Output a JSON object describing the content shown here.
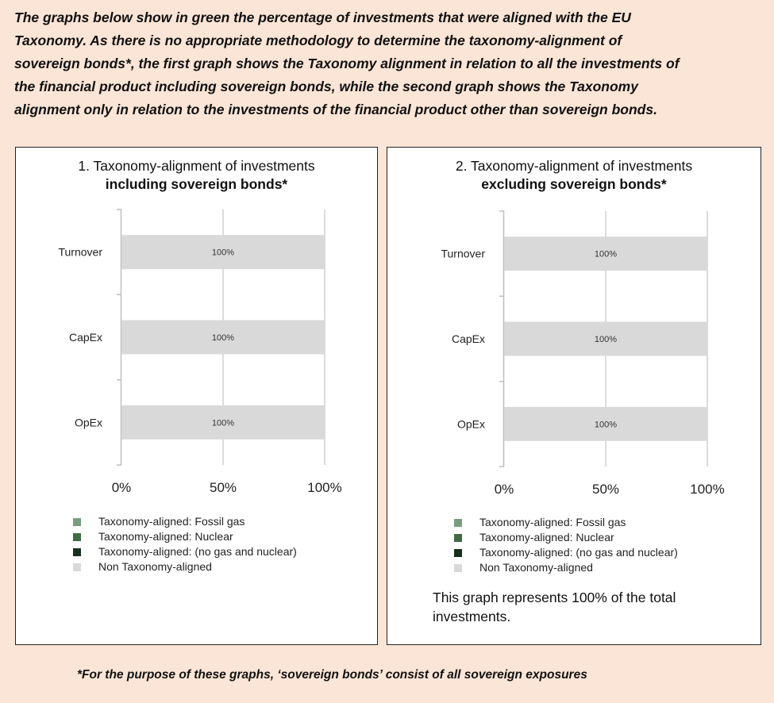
{
  "intro": {
    "lines": [
      "The graphs below show in green the percentage of investments that were aligned with the EU",
      "Taxonomy. As there is no appropriate methodology to determine the taxonomy-alignment of",
      "sovereign bonds*, the first graph shows the Taxonomy alignment in relation to all the investments of",
      "the financial product including sovereign bonds, while the second graph shows the Taxonomy",
      "alignment only in relation to the investments of the financial product other than sovereign bonds."
    ]
  },
  "legend": {
    "items": [
      {
        "label": "Taxonomy-aligned: Fossil gas",
        "color": "#7a9c80"
      },
      {
        "label": "Taxonomy-aligned: Nuclear",
        "color": "#3f6b46"
      },
      {
        "label": "Taxonomy-aligned: (no gas and nuclear)",
        "color": "#17301b"
      },
      {
        "label": "Non Taxonomy-aligned",
        "color": "#d9d9d9"
      }
    ]
  },
  "note": "This graph represents 100% of the total investments.",
  "footnote": "*For the purpose of these graphs, ‘sovereign bonds’ consist of  all sovereign exposures",
  "chart_data": [
    {
      "type": "bar",
      "orientation": "horizontal",
      "stacked": true,
      "title": "1. Taxonomy-alignment of investments",
      "subtitle": "including sovereign bonds*",
      "categories": [
        "Turnover",
        "CapEx",
        "OpEx"
      ],
      "series": [
        {
          "name": "Taxonomy-aligned: Fossil gas",
          "values": [
            0,
            0,
            0
          ]
        },
        {
          "name": "Taxonomy-aligned: Nuclear",
          "values": [
            0,
            0,
            0
          ]
        },
        {
          "name": "Taxonomy-aligned: (no gas and nuclear)",
          "values": [
            0,
            0,
            0
          ]
        },
        {
          "name": "Non Taxonomy-aligned",
          "values": [
            100,
            100,
            100
          ]
        }
      ],
      "data_labels": [
        "100%",
        "100%",
        "100%"
      ],
      "xticks": [
        "0%",
        "50%",
        "100%"
      ],
      "xlim": [
        0,
        100
      ],
      "grid": true,
      "legend_position": "bottom"
    },
    {
      "type": "bar",
      "orientation": "horizontal",
      "stacked": true,
      "title": "2. Taxonomy-alignment of investments",
      "subtitle": "excluding sovereign bonds*",
      "categories": [
        "Turnover",
        "CapEx",
        "OpEx"
      ],
      "series": [
        {
          "name": "Taxonomy-aligned: Fossil gas",
          "values": [
            0,
            0,
            0
          ]
        },
        {
          "name": "Taxonomy-aligned: Nuclear",
          "values": [
            0,
            0,
            0
          ]
        },
        {
          "name": "Taxonomy-aligned: (no gas and nuclear)",
          "values": [
            0,
            0,
            0
          ]
        },
        {
          "name": "Non Taxonomy-aligned",
          "values": [
            100,
            100,
            100
          ]
        }
      ],
      "data_labels": [
        "100%",
        "100%",
        "100%"
      ],
      "xticks": [
        "0%",
        "50%",
        "100%"
      ],
      "xlim": [
        0,
        100
      ],
      "grid": true,
      "legend_position": "bottom"
    }
  ]
}
